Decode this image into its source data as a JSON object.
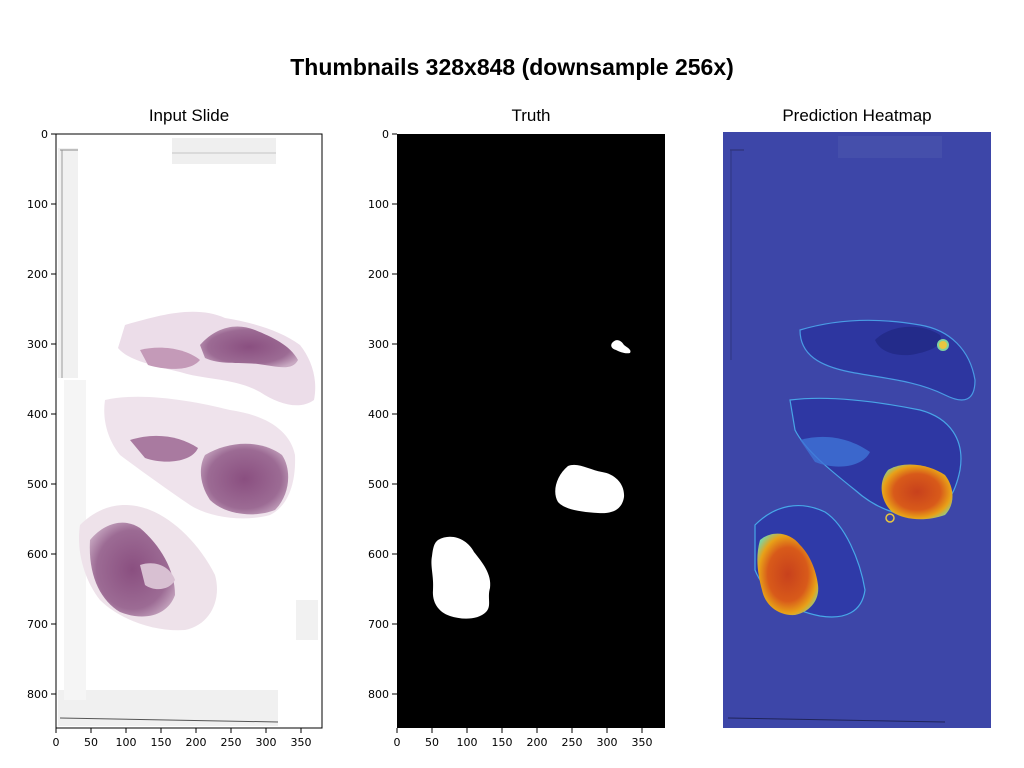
{
  "figure": {
    "title": "Thumbnails 328x848 (downsample 256x)"
  },
  "panels": [
    {
      "title": "Input Slide"
    },
    {
      "title": "Truth"
    },
    {
      "title": "Prediction Heatmap"
    }
  ],
  "axes": {
    "x_ticks": [
      "0",
      "50",
      "100",
      "150",
      "200",
      "250",
      "300",
      "350"
    ],
    "y_ticks": [
      "0",
      "100",
      "200",
      "300",
      "400",
      "500",
      "600",
      "700",
      "800"
    ]
  },
  "colors": {
    "background": "#ffffff",
    "tissue_purple": "#8f5a8a",
    "tissue_light": "#e9dbe6",
    "mask_black": "#000000",
    "mask_white": "#ffffff",
    "heatmap_low": "#3d46a8",
    "heatmap_high": "#d4361b"
  }
}
